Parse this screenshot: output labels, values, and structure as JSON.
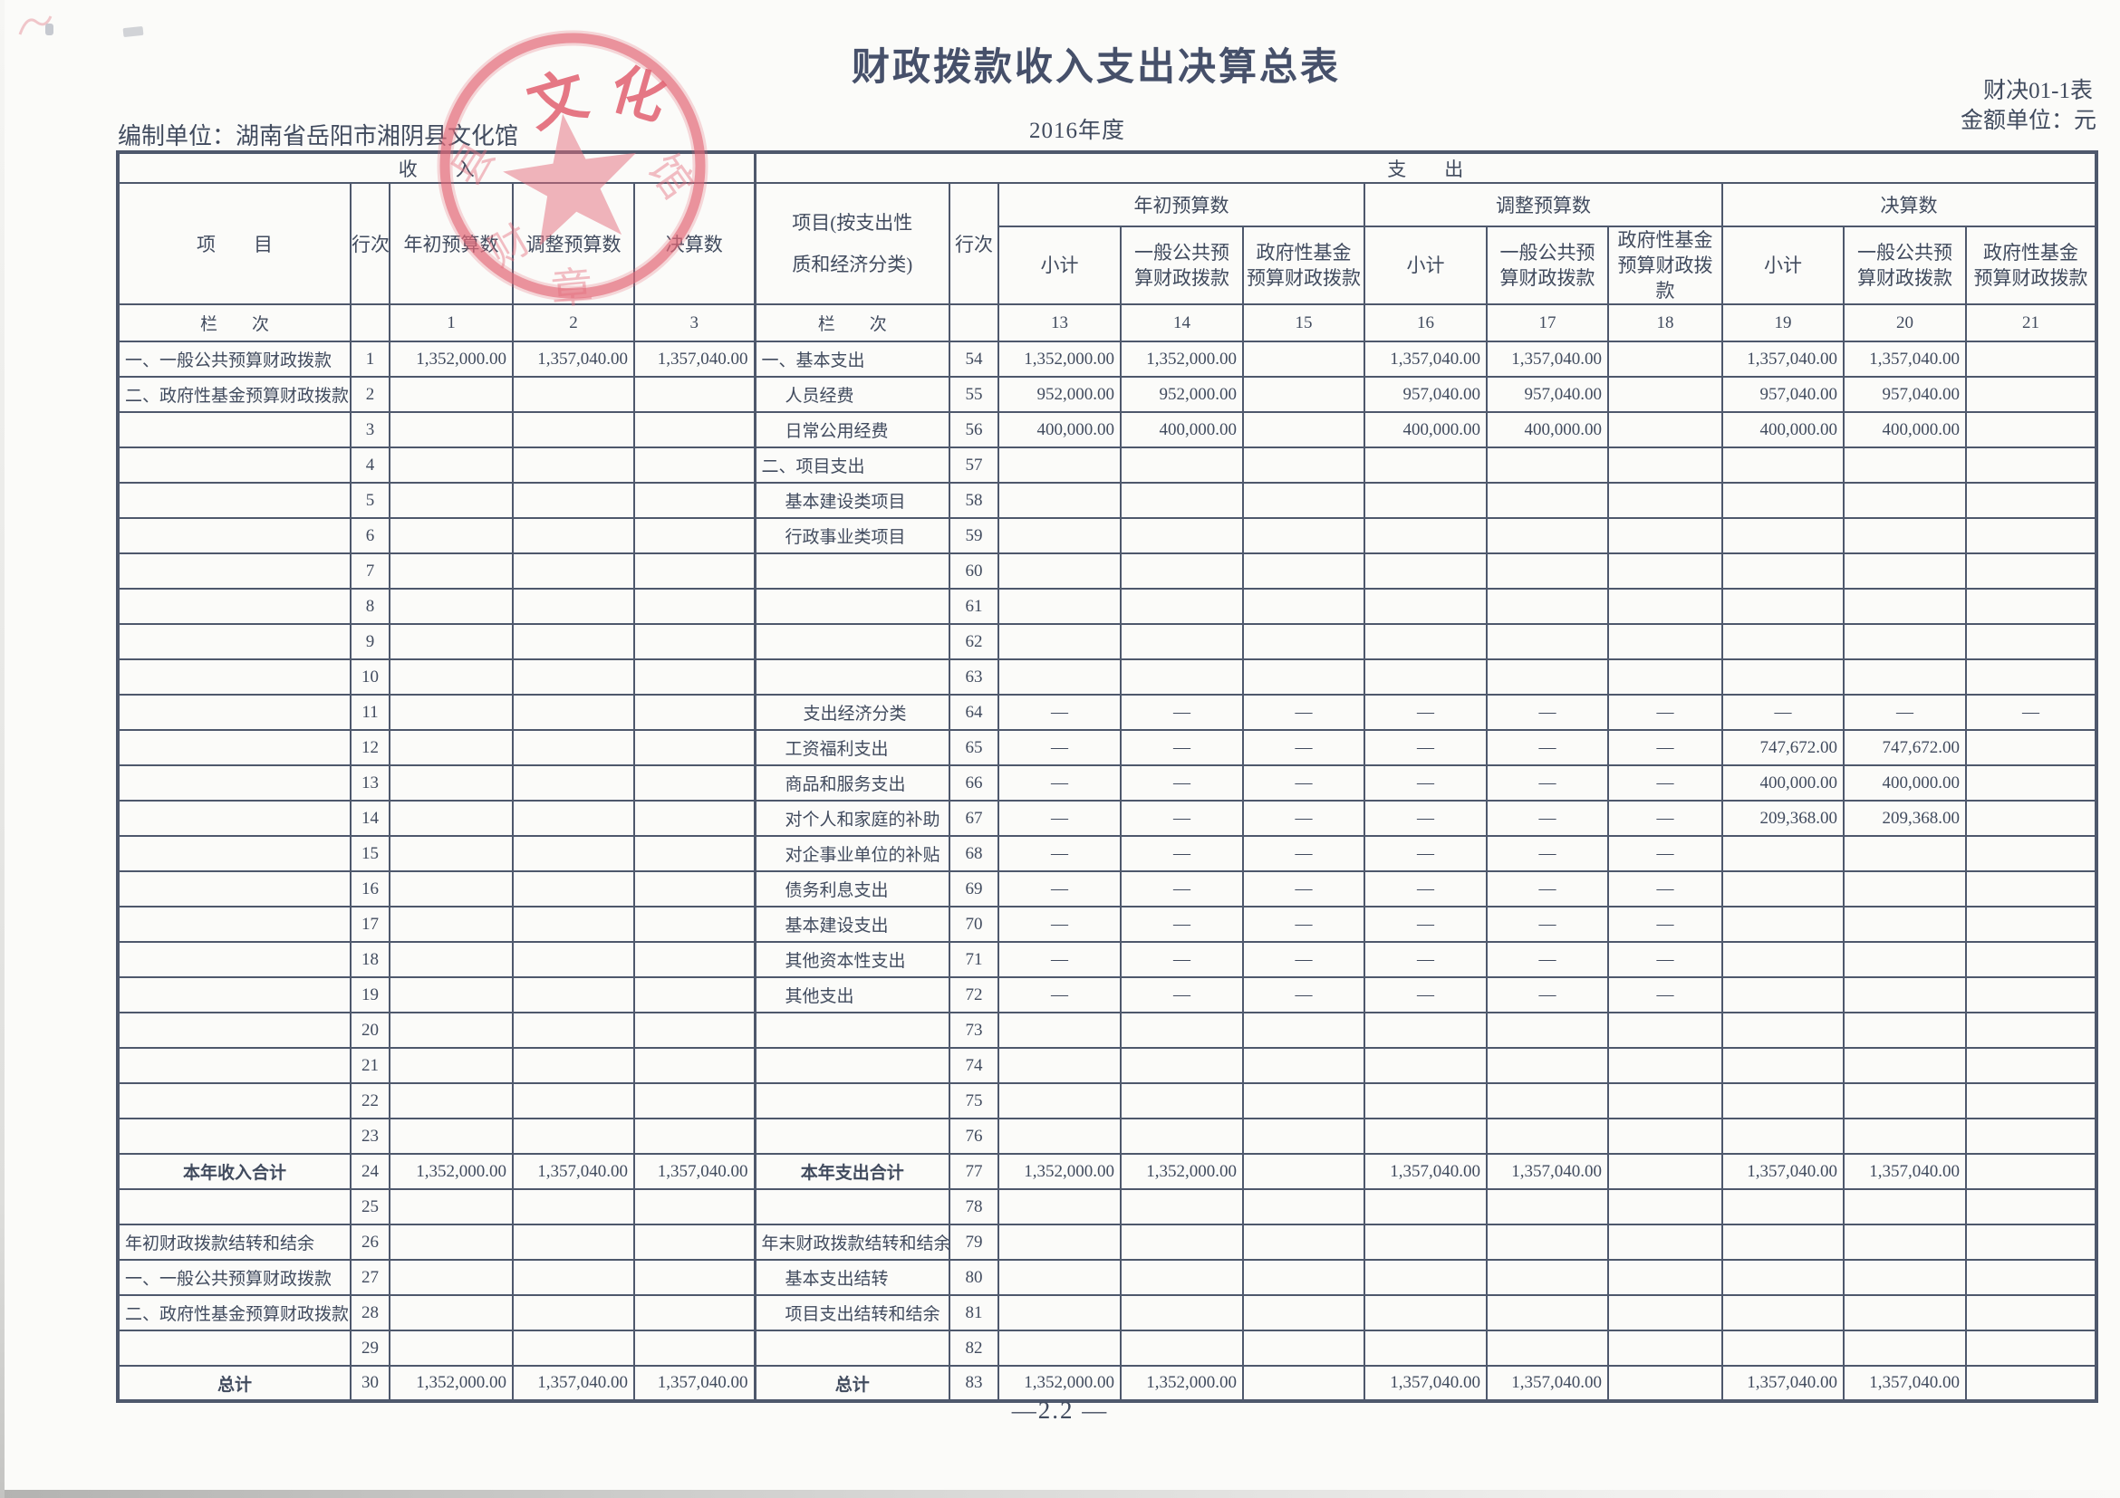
{
  "meta": {
    "title": "财政拨款收入支出决算总表",
    "form_code": "财决01-1表",
    "unit_note": "金额单位：元",
    "prepared_by": "编制单位：湖南省岳阳市湘阴县文化馆",
    "year": "2016年度",
    "page_number": "—2.2 —"
  },
  "stamp": {
    "arc_char_1": "文",
    "arc_char_2": "化",
    "fragment_1": "县",
    "fragment_2": "馆",
    "fragment_3": "财",
    "fragment_4": "章"
  },
  "table": {
    "income": {
      "section_title": "收　　入",
      "headers": {
        "item": "项　　目",
        "row_no": "行次",
        "cols": [
          "年初预算数",
          "调整预算数",
          "决算数"
        ],
        "col_index_label": "栏　　次",
        "col_indices": [
          "1",
          "2",
          "3"
        ]
      },
      "rows": [
        {
          "item": "一、一般公共预算财政拨款",
          "no": "1",
          "cells": [
            "1,352,000.00",
            "1,357,040.00",
            "1,357,040.00"
          ]
        },
        {
          "item": "二、政府性基金预算财政拨款",
          "no": "2"
        },
        {
          "item": "",
          "no": "3"
        },
        {
          "item": "",
          "no": "4"
        },
        {
          "item": "",
          "no": "5"
        },
        {
          "item": "",
          "no": "6"
        },
        {
          "item": "",
          "no": "7"
        },
        {
          "item": "",
          "no": "8"
        },
        {
          "item": "",
          "no": "9"
        },
        {
          "item": "",
          "no": "10"
        },
        {
          "item": "",
          "no": "11"
        },
        {
          "item": "",
          "no": "12"
        },
        {
          "item": "",
          "no": "13"
        },
        {
          "item": "",
          "no": "14"
        },
        {
          "item": "",
          "no": "15"
        },
        {
          "item": "",
          "no": "16"
        },
        {
          "item": "",
          "no": "17"
        },
        {
          "item": "",
          "no": "18"
        },
        {
          "item": "",
          "no": "19"
        },
        {
          "item": "",
          "no": "20"
        },
        {
          "item": "",
          "no": "21"
        },
        {
          "item": "",
          "no": "22"
        },
        {
          "item": "",
          "no": "23"
        },
        {
          "item": "本年收入合计",
          "no": "24",
          "cls": "ctr bold",
          "cells": [
            "1,352,000.00",
            "1,357,040.00",
            "1,357,040.00"
          ]
        },
        {
          "item": "",
          "no": "25"
        },
        {
          "item": "年初财政拨款结转和结余",
          "no": "26"
        },
        {
          "item": "一、一般公共预算财政拨款",
          "no": "27"
        },
        {
          "item": "二、政府性基金预算财政拨款",
          "no": "28"
        },
        {
          "item": "",
          "no": "29"
        },
        {
          "item": "总计",
          "no": "30",
          "cls": "ctr bold",
          "cells": [
            "1,352,000.00",
            "1,357,040.00",
            "1,357,040.00"
          ]
        }
      ]
    },
    "expenditure": {
      "section_title": "支　　出",
      "headers": {
        "item": "项目(按支出性\n质和经济分类)",
        "row_no": "行次",
        "groups": [
          "年初预算数",
          "调整预算数",
          "决算数"
        ],
        "subcols": [
          "小计",
          "一般公共预\n算财政拨款",
          "政府性基金\n预算财政拨款"
        ],
        "col_index_label": "栏　　次",
        "col_indices": [
          "13",
          "14",
          "15",
          "16",
          "17",
          "18",
          "19",
          "20",
          "21"
        ]
      },
      "rows": [
        {
          "item": "一、基本支出",
          "no": "54",
          "cells": [
            "1,352,000.00",
            "1,352,000.00",
            "",
            "1,357,040.00",
            "1,357,040.00",
            "",
            "1,357,040.00",
            "1,357,040.00",
            ""
          ]
        },
        {
          "item": "人员经费",
          "no": "55",
          "cls": "ind1",
          "cells": [
            "952,000.00",
            "952,000.00",
            "",
            "957,040.00",
            "957,040.00",
            "",
            "957,040.00",
            "957,040.00",
            ""
          ]
        },
        {
          "item": "日常公用经费",
          "no": "56",
          "cls": "ind1",
          "cells": [
            "400,000.00",
            "400,000.00",
            "",
            "400,000.00",
            "400,000.00",
            "",
            "400,000.00",
            "400,000.00",
            ""
          ]
        },
        {
          "item": "二、项目支出",
          "no": "57"
        },
        {
          "item": "基本建设类项目",
          "no": "58",
          "cls": "ind1"
        },
        {
          "item": "行政事业类项目",
          "no": "59",
          "cls": "ind1"
        },
        {
          "item": "",
          "no": "60"
        },
        {
          "item": "",
          "no": "61"
        },
        {
          "item": "",
          "no": "62"
        },
        {
          "item": "",
          "no": "63"
        },
        {
          "item": "支出经济分类",
          "no": "64",
          "cls": "ind2",
          "cells": [
            "—",
            "—",
            "—",
            "—",
            "—",
            "—",
            "—",
            "—",
            "—"
          ]
        },
        {
          "item": "工资福利支出",
          "no": "65",
          "cls": "ind1",
          "cells": [
            "—",
            "—",
            "—",
            "—",
            "—",
            "—",
            "747,672.00",
            "747,672.00",
            ""
          ]
        },
        {
          "item": "商品和服务支出",
          "no": "66",
          "cls": "ind1",
          "cells": [
            "—",
            "—",
            "—",
            "—",
            "—",
            "—",
            "400,000.00",
            "400,000.00",
            ""
          ]
        },
        {
          "item": "对个人和家庭的补助",
          "no": "67",
          "cls": "ind1",
          "cells": [
            "—",
            "—",
            "—",
            "—",
            "—",
            "—",
            "209,368.00",
            "209,368.00",
            ""
          ]
        },
        {
          "item": "对企事业单位的补贴",
          "no": "68",
          "cls": "ind1",
          "cells": [
            "—",
            "—",
            "—",
            "—",
            "—",
            "—",
            "",
            "",
            ""
          ]
        },
        {
          "item": "债务利息支出",
          "no": "69",
          "cls": "ind1",
          "cells": [
            "—",
            "—",
            "—",
            "—",
            "—",
            "—",
            "",
            "",
            ""
          ]
        },
        {
          "item": "基本建设支出",
          "no": "70",
          "cls": "ind1",
          "cells": [
            "—",
            "—",
            "—",
            "—",
            "—",
            "—",
            "",
            "",
            ""
          ]
        },
        {
          "item": "其他资本性支出",
          "no": "71",
          "cls": "ind1",
          "cells": [
            "—",
            "—",
            "—",
            "—",
            "—",
            "—",
            "",
            "",
            ""
          ]
        },
        {
          "item": "其他支出",
          "no": "72",
          "cls": "ind1",
          "cells": [
            "—",
            "—",
            "—",
            "—",
            "—",
            "—",
            "",
            "",
            ""
          ]
        },
        {
          "item": "",
          "no": "73"
        },
        {
          "item": "",
          "no": "74"
        },
        {
          "item": "",
          "no": "75"
        },
        {
          "item": "",
          "no": "76"
        },
        {
          "item": "本年支出合计",
          "no": "77",
          "cls": "ctr bold",
          "cells": [
            "1,352,000.00",
            "1,352,000.00",
            "",
            "1,357,040.00",
            "1,357,040.00",
            "",
            "1,357,040.00",
            "1,357,040.00",
            ""
          ]
        },
        {
          "item": "",
          "no": "78"
        },
        {
          "item": "年末财政拨款结转和结余",
          "no": "79"
        },
        {
          "item": "基本支出结转",
          "no": "80",
          "cls": "ind1"
        },
        {
          "item": "项目支出结转和结余",
          "no": "81",
          "cls": "ind1"
        },
        {
          "item": "",
          "no": "82"
        },
        {
          "item": "总计",
          "no": "83",
          "cls": "ctr bold",
          "cells": [
            "1,352,000.00",
            "1,352,000.00",
            "",
            "1,357,040.00",
            "1,357,040.00",
            "",
            "1,357,040.00",
            "1,357,040.00",
            ""
          ]
        }
      ]
    }
  }
}
